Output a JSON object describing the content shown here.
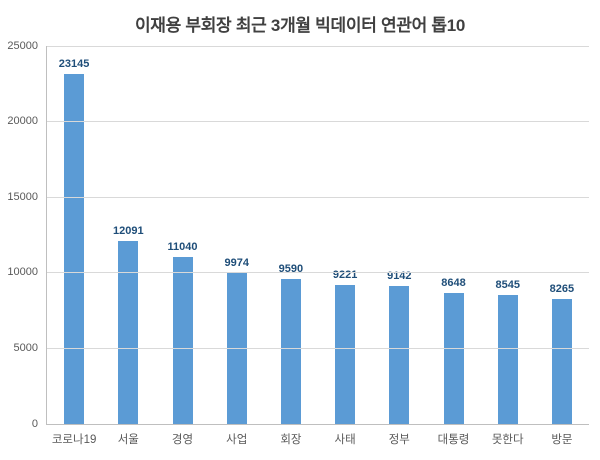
{
  "title": "이재용 부회장 최근 3개월 빅데이터 연관어 톱10",
  "colors": {
    "bar": "#5b9bd5",
    "value_label": "#1f4e79",
    "axis_text": "#595959",
    "gridline": "#d9d9d9",
    "axis_line": "#bfbfbf",
    "title_text": "#404040"
  },
  "chart_data": {
    "type": "bar",
    "title": "이재용 부회장 최근 3개월 빅데이터 연관어 톱10",
    "categories": [
      "코로나19",
      "서울",
      "경영",
      "사업",
      "회장",
      "사태",
      "정부",
      "대통령",
      "못한다",
      "방문"
    ],
    "values": [
      23145,
      12091,
      11040,
      9974,
      9590,
      9221,
      9142,
      8648,
      8545,
      8265
    ],
    "xlabel": "",
    "ylabel": "",
    "ylim": [
      0,
      25000
    ],
    "yticks": [
      0,
      5000,
      10000,
      15000,
      20000,
      25000
    ],
    "grid": "horizontal",
    "legend": "none",
    "data_labels": "above-bars"
  }
}
